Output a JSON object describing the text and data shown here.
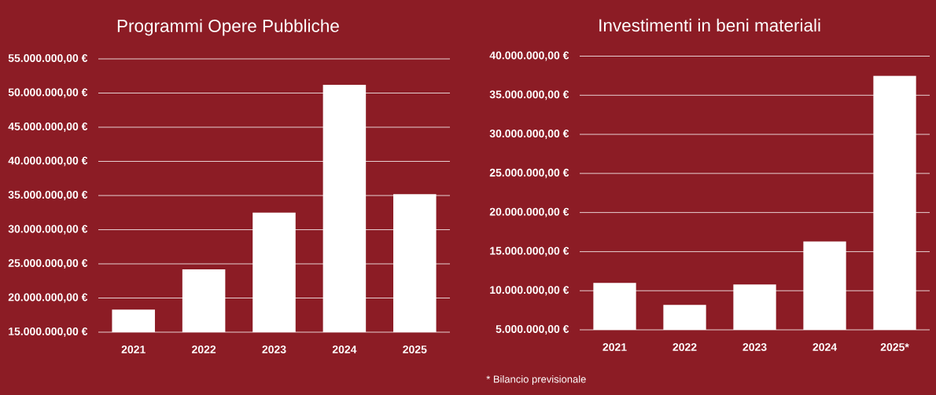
{
  "chart_data": [
    {
      "type": "bar",
      "title": "Programmi Opere Pubbliche",
      "categories": [
        "2021",
        "2022",
        "2023",
        "2024",
        "2025"
      ],
      "values": [
        18300000,
        24200000,
        32500000,
        51200000,
        35200000
      ],
      "color": "#ffffff",
      "ylim": [
        15000000,
        55000000
      ],
      "yticks": [
        {
          "value": 15000000,
          "label": "15.000.000,00 €"
        },
        {
          "value": 20000000,
          "label": "20.000.000,00 €"
        },
        {
          "value": 25000000,
          "label": "25.000.000,00 €"
        },
        {
          "value": 30000000,
          "label": "30.000.000,00 €"
        },
        {
          "value": 35000000,
          "label": "35.000.000,00 €"
        },
        {
          "value": 40000000,
          "label": "40.000.000,00 €"
        },
        {
          "value": 45000000,
          "label": "45.000.000,00 €"
        },
        {
          "value": 50000000,
          "label": "50.000.000,00 €"
        },
        {
          "value": 55000000,
          "label": "55.000.000,00 €"
        }
      ],
      "grid": "y"
    },
    {
      "type": "bar",
      "title": "Investimenti in beni materiali",
      "categories": [
        "2021",
        "2022",
        "2023",
        "2024",
        "2025*"
      ],
      "values": [
        11000000,
        8200000,
        10800000,
        16300000,
        37500000
      ],
      "color": "#ffffff",
      "ylim": [
        5000000,
        40000000
      ],
      "yticks": [
        {
          "value": 5000000,
          "label": "5.000.000,00 €"
        },
        {
          "value": 10000000,
          "label": "10.000.000,00 €"
        },
        {
          "value": 15000000,
          "label": "15.000.000,00 €"
        },
        {
          "value": 20000000,
          "label": "20.000.000,00 €"
        },
        {
          "value": 25000000,
          "label": "25.000.000,00 €"
        },
        {
          "value": 30000000,
          "label": "30.000.000,00 €"
        },
        {
          "value": 35000000,
          "label": "35.000.000,00 €"
        },
        {
          "value": 40000000,
          "label": "40.000.000,00 €"
        }
      ],
      "grid": "y",
      "annotations": [
        "* Bilancio previsionale"
      ]
    }
  ]
}
